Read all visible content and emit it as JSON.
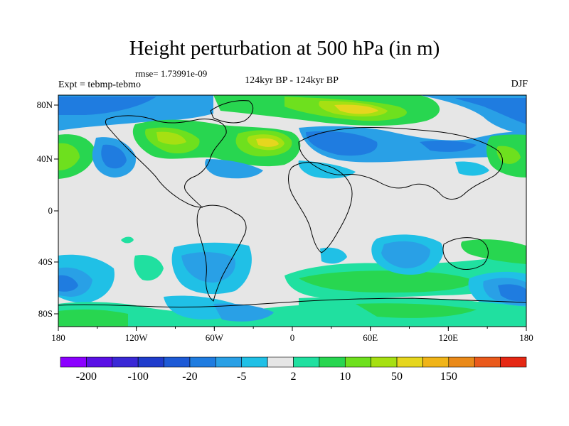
{
  "title": "Height perturbation at 500 hPa (in m)",
  "rmse": "rmse= 1.73991e-09",
  "expt": "Expt = tebmp-tebmo",
  "subtitle": "124kyr BP - 124kyr BP",
  "season": "DJF",
  "lon_labels": [
    "180",
    "120W",
    "60W",
    "0",
    "60E",
    "120E",
    "180"
  ],
  "lat_labels": [
    "80N",
    "40N",
    "0",
    "40S",
    "80S"
  ],
  "colorbar": {
    "colors": [
      "#8b00ff",
      "#5a10e6",
      "#3a28d6",
      "#1f3ccc",
      "#1d5ad6",
      "#1f7ce0",
      "#29a0e6",
      "#20c0e6",
      "#e6e6e6",
      "#20e0a0",
      "#28d650",
      "#6ee01e",
      "#a6e012",
      "#e6d61e",
      "#f0b418",
      "#ea8a1a",
      "#ea5a1c",
      "#e62814"
    ],
    "labels": [
      "-200",
      "-100",
      "-20",
      "-5",
      "2",
      "10",
      "50",
      "150"
    ],
    "label_boundaries": [
      1,
      3,
      5,
      7,
      9,
      11,
      13,
      15
    ]
  },
  "field_colors": {
    "background": "#e6e6e6",
    "cyan": "#20c0e6",
    "lightblue": "#29a0e6",
    "blue": "#1f7ce0",
    "teal": "#20e0a0",
    "green": "#28d650",
    "yellowgreen": "#6ee01e",
    "lime": "#a6e012",
    "yellow": "#e6d61e"
  }
}
